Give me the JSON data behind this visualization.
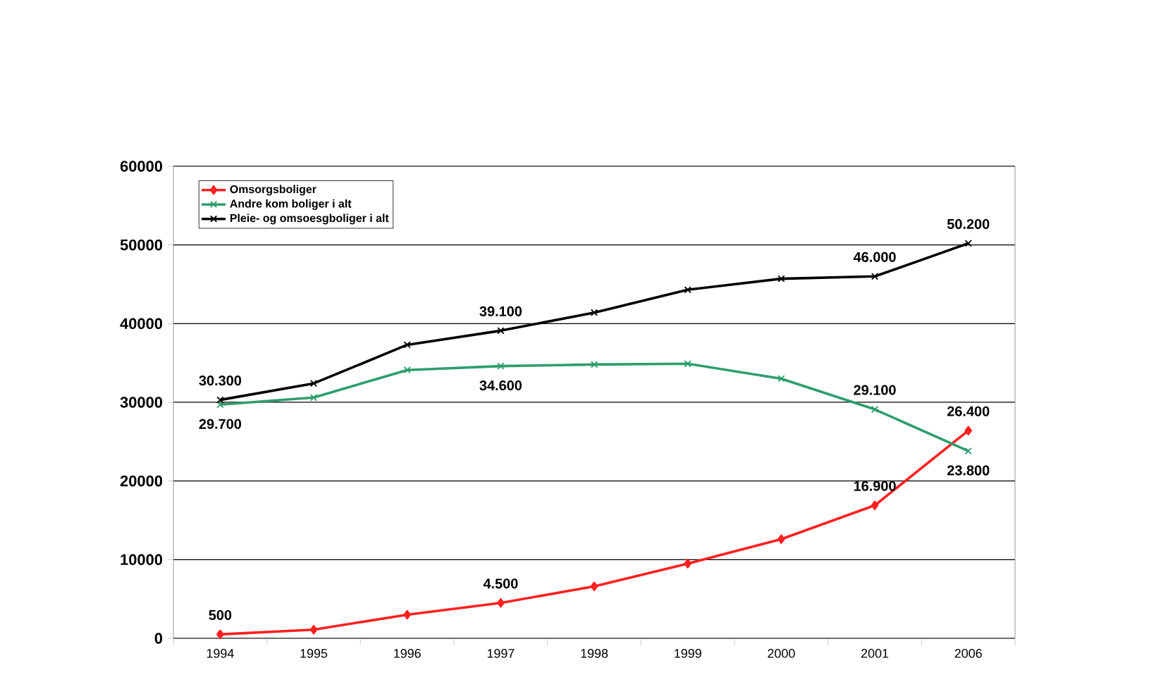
{
  "chart_data": {
    "type": "line",
    "categories": [
      "1994",
      "1995",
      "1996",
      "1997",
      "1998",
      "1999",
      "2000",
      "2001",
      "2006"
    ],
    "ylim": [
      0,
      60000
    ],
    "yticks": [
      0,
      10000,
      20000,
      30000,
      40000,
      50000,
      60000
    ],
    "grid": "y",
    "legend": "top left",
    "series": [
      {
        "name": "Omsorgsboliger",
        "color": "#ff2020",
        "marker": "diamond",
        "values": [
          500,
          1100,
          3000,
          4500,
          6600,
          9500,
          12600,
          16900,
          26400
        ],
        "value_labels": [
          "500",
          null,
          null,
          "4.500",
          null,
          null,
          null,
          "16.900",
          "26.400"
        ]
      },
      {
        "name": "Andre kom boliger i alt",
        "color": "#2e9e6e",
        "marker": "cross",
        "values": [
          29700,
          30600,
          34100,
          34600,
          34800,
          34900,
          33000,
          29100,
          23800
        ],
        "value_labels": [
          "29.700",
          null,
          null,
          "34.600",
          null,
          null,
          null,
          "29.100",
          "23.800"
        ]
      },
      {
        "name": "Pleie- og omsoesgboliger i alt",
        "color": "#000000",
        "marker": "cross",
        "values": [
          30300,
          32400,
          37300,
          39100,
          41400,
          44300,
          45700,
          46000,
          50200
        ],
        "value_labels": [
          "30.300",
          null,
          null,
          "39.100",
          null,
          null,
          null,
          "46.000",
          "50.200"
        ]
      }
    ]
  }
}
